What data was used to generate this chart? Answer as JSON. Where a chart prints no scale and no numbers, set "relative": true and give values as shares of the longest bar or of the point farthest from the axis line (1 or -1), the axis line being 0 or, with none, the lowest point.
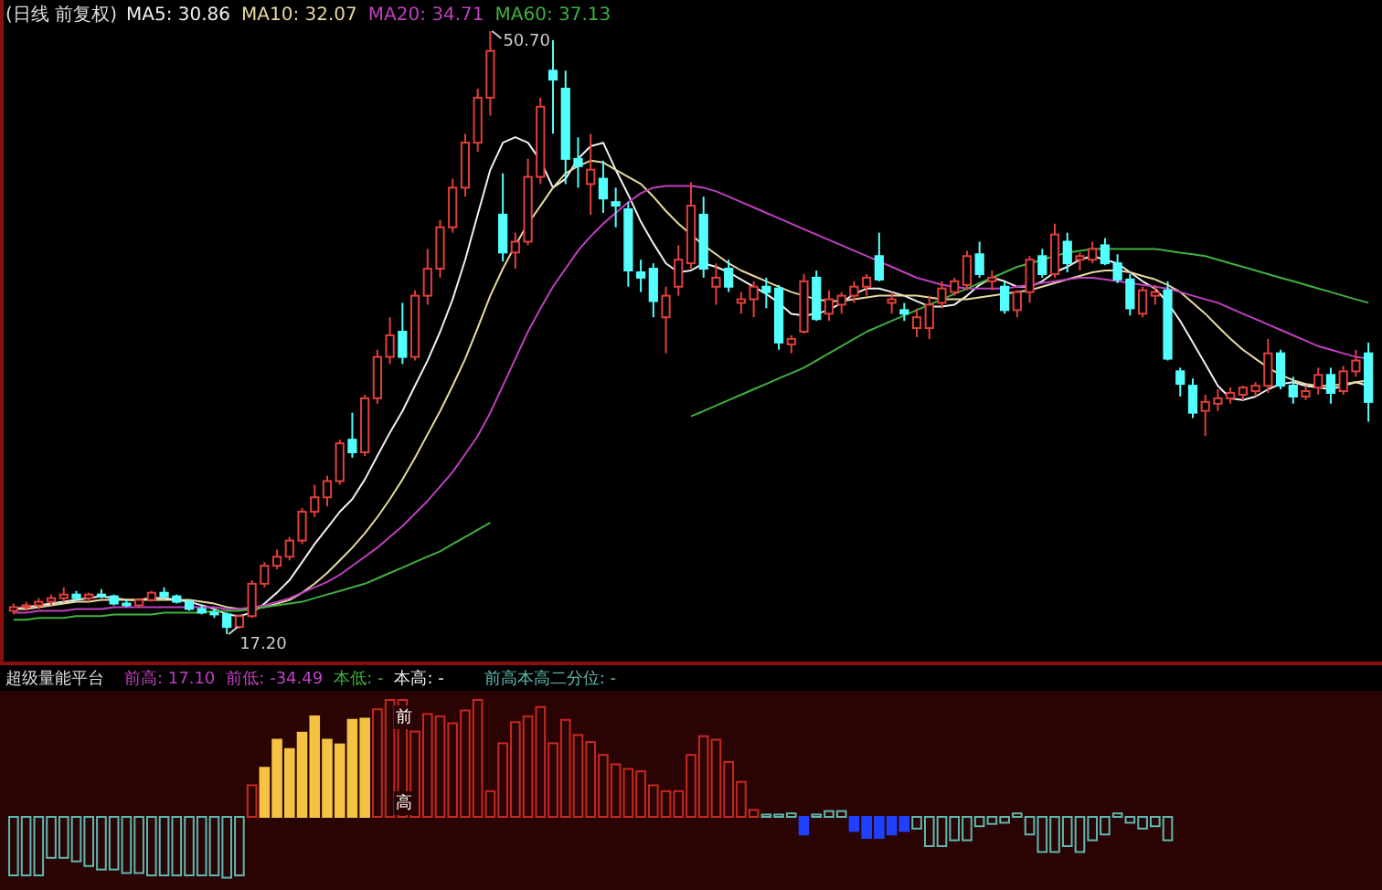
{
  "chart_data": [
    {
      "type": "candlestick",
      "title": "(日线 前复权)",
      "categories": [
        null,
        null,
        null,
        null,
        null,
        null,
        null,
        null,
        null,
        null,
        null,
        null,
        null,
        null,
        null,
        null,
        null,
        null,
        null,
        null,
        null,
        null,
        null,
        null,
        null,
        null,
        null,
        null,
        null,
        null,
        null,
        null,
        null,
        null,
        null,
        null,
        null,
        null,
        null,
        null,
        null,
        null,
        null,
        null,
        null,
        null,
        null,
        null,
        null,
        null,
        null,
        null,
        null,
        null,
        null,
        null,
        null,
        null,
        null,
        null,
        null,
        null,
        null,
        null,
        null,
        null,
        null,
        null,
        null,
        null,
        null,
        null,
        null,
        null,
        null,
        null,
        null,
        null,
        null,
        null,
        null,
        null,
        null,
        null,
        null,
        null,
        null,
        null,
        null,
        null,
        null,
        null,
        null,
        null,
        null,
        null,
        null,
        null,
        null,
        null,
        null,
        null,
        null,
        null,
        null,
        null,
        null,
        null,
        null
      ],
      "ohlc": [
        [
          18.5,
          18.9,
          18.3,
          18.7
        ],
        [
          18.7,
          19.0,
          18.5,
          18.8
        ],
        [
          18.8,
          19.2,
          18.6,
          19.0
        ],
        [
          19.0,
          19.4,
          18.8,
          19.2
        ],
        [
          19.2,
          19.8,
          19.0,
          19.4
        ],
        [
          19.4,
          19.6,
          19.1,
          19.2
        ],
        [
          19.2,
          19.5,
          19.0,
          19.4
        ],
        [
          19.4,
          19.7,
          19.2,
          19.3
        ],
        [
          19.3,
          19.4,
          18.8,
          18.9
        ],
        [
          18.9,
          19.1,
          18.7,
          18.8
        ],
        [
          18.8,
          19.2,
          18.7,
          19.1
        ],
        [
          19.1,
          19.6,
          19.0,
          19.5
        ],
        [
          19.5,
          19.8,
          19.2,
          19.3
        ],
        [
          19.3,
          19.4,
          18.9,
          19.0
        ],
        [
          19.0,
          19.1,
          18.5,
          18.6
        ],
        [
          18.6,
          18.8,
          18.3,
          18.4
        ],
        [
          18.4,
          18.6,
          18.1,
          18.3
        ],
        [
          18.3,
          18.4,
          17.2,
          17.6
        ],
        [
          17.6,
          18.3,
          17.5,
          18.2
        ],
        [
          18.2,
          20.2,
          18.1,
          20.0
        ],
        [
          20.0,
          21.2,
          19.8,
          21.0
        ],
        [
          21.0,
          21.9,
          20.8,
          21.5
        ],
        [
          21.5,
          22.6,
          21.3,
          22.4
        ],
        [
          22.4,
          24.2,
          22.2,
          24.0
        ],
        [
          24.0,
          25.5,
          23.7,
          24.8
        ],
        [
          24.8,
          26.0,
          24.3,
          25.7
        ],
        [
          25.7,
          28.0,
          25.5,
          27.8
        ],
        [
          28.0,
          29.5,
          27.0,
          27.3
        ],
        [
          27.3,
          30.5,
          27.1,
          30.3
        ],
        [
          30.3,
          33.0,
          30.0,
          32.6
        ],
        [
          32.6,
          34.8,
          32.2,
          33.8
        ],
        [
          34.0,
          35.6,
          32.2,
          32.6
        ],
        [
          32.6,
          36.3,
          32.4,
          36.0
        ],
        [
          36.0,
          38.6,
          35.5,
          37.5
        ],
        [
          37.5,
          40.2,
          37.0,
          39.8
        ],
        [
          39.8,
          42.5,
          39.5,
          42.0
        ],
        [
          42.0,
          45.0,
          41.5,
          44.5
        ],
        [
          44.5,
          47.5,
          44.0,
          47.0
        ],
        [
          47.0,
          50.7,
          46.0,
          49.6
        ],
        [
          40.5,
          42.8,
          37.9,
          38.4
        ],
        [
          38.4,
          39.5,
          37.5,
          39.0
        ],
        [
          39.0,
          43.6,
          38.8,
          42.6
        ],
        [
          42.6,
          47.0,
          42.2,
          46.5
        ],
        [
          48.5,
          50.2,
          45.0,
          48.0
        ],
        [
          47.5,
          48.5,
          42.2,
          43.6
        ],
        [
          43.6,
          44.8,
          42.0,
          43.2
        ],
        [
          42.2,
          45.0,
          40.5,
          43.0
        ],
        [
          42.5,
          43.5,
          40.6,
          41.4
        ],
        [
          41.2,
          42.0,
          39.8,
          41.0
        ],
        [
          40.8,
          41.2,
          36.5,
          37.4
        ],
        [
          37.3,
          38.0,
          36.2,
          37.0
        ],
        [
          37.5,
          37.8,
          34.8,
          35.7
        ],
        [
          34.8,
          36.5,
          32.8,
          36.0
        ],
        [
          36.5,
          38.8,
          36.0,
          38.0
        ],
        [
          37.8,
          42.3,
          37.5,
          41.0
        ],
        [
          40.5,
          41.5,
          37.0,
          37.5
        ],
        [
          36.5,
          37.8,
          35.5,
          37.0
        ],
        [
          37.5,
          38.0,
          36.2,
          36.5
        ],
        [
          35.6,
          36.2,
          35.0,
          35.8
        ],
        [
          35.8,
          36.8,
          34.8,
          36.5
        ],
        [
          36.5,
          37.0,
          35.3,
          36.2
        ],
        [
          36.4,
          36.6,
          33.0,
          33.4
        ],
        [
          33.3,
          33.8,
          32.8,
          33.6
        ],
        [
          34.0,
          37.2,
          33.9,
          36.8
        ],
        [
          37.0,
          37.4,
          34.6,
          34.7
        ],
        [
          35.0,
          36.3,
          34.6,
          35.8
        ],
        [
          35.5,
          36.2,
          35.0,
          36.0
        ],
        [
          36.0,
          36.8,
          35.6,
          36.5
        ],
        [
          36.5,
          37.2,
          36.0,
          37.0
        ],
        [
          38.2,
          39.5,
          36.8,
          36.9
        ],
        [
          35.6,
          36.2,
          35.0,
          35.8
        ],
        [
          35.2,
          35.6,
          34.6,
          35.0
        ],
        [
          34.2,
          35.3,
          33.7,
          34.8
        ],
        [
          34.2,
          36.0,
          33.6,
          35.5
        ],
        [
          35.6,
          36.8,
          35.3,
          36.4
        ],
        [
          36.2,
          37.0,
          36.0,
          36.8
        ],
        [
          36.6,
          38.5,
          36.3,
          38.2
        ],
        [
          38.3,
          39.0,
          37.0,
          37.2
        ],
        [
          36.8,
          37.4,
          36.3,
          37.0
        ],
        [
          36.5,
          36.8,
          35.0,
          35.2
        ],
        [
          35.2,
          36.3,
          34.8,
          36.2
        ],
        [
          36.2,
          38.2,
          35.6,
          38.0
        ],
        [
          38.2,
          38.6,
          37.0,
          37.2
        ],
        [
          37.2,
          40.0,
          37.0,
          39.4
        ],
        [
          39.0,
          39.5,
          37.3,
          37.8
        ],
        [
          38.0,
          38.4,
          37.4,
          38.2
        ],
        [
          38.0,
          39.0,
          37.8,
          38.6
        ],
        [
          38.8,
          39.2,
          37.7,
          37.8
        ],
        [
          37.8,
          38.3,
          36.7,
          36.9
        ],
        [
          36.9,
          37.2,
          34.9,
          35.3
        ],
        [
          35.0,
          36.5,
          34.8,
          36.3
        ],
        [
          36.0,
          36.6,
          35.5,
          36.2
        ],
        [
          36.3,
          36.8,
          32.4,
          32.5
        ],
        [
          31.8,
          32.0,
          30.4,
          31.1
        ],
        [
          31.0,
          31.4,
          29.2,
          29.5
        ],
        [
          29.6,
          30.5,
          28.2,
          30.1
        ],
        [
          30.0,
          30.8,
          29.6,
          30.3
        ],
        [
          30.3,
          30.9,
          30.0,
          30.6
        ],
        [
          30.5,
          31.0,
          30.2,
          30.9
        ],
        [
          30.7,
          31.2,
          30.4,
          31.0
        ],
        [
          31.0,
          33.6,
          30.6,
          32.8
        ],
        [
          32.8,
          33.0,
          30.8,
          31.0
        ],
        [
          31.0,
          31.5,
          30.0,
          30.4
        ],
        [
          30.4,
          31.0,
          30.2,
          30.7
        ],
        [
          30.9,
          32.0,
          30.5,
          31.6
        ],
        [
          31.6,
          32.0,
          30.0,
          30.6
        ],
        [
          30.7,
          32.1,
          30.5,
          31.8
        ],
        [
          31.8,
          33.0,
          31.5,
          32.4
        ],
        [
          32.8,
          33.4,
          29.0,
          30.1
        ]
      ],
      "series": [
        {
          "type": "line",
          "name": "MA5: 30.86",
          "color": "#f0f0f0",
          "values": [
            18.6,
            18.7,
            18.8,
            18.9,
            19.0,
            19.1,
            19.2,
            19.3,
            19.2,
            19.1,
            19.1,
            19.2,
            19.2,
            19.1,
            19.0,
            18.8,
            18.6,
            18.3,
            18.2,
            18.4,
            18.9,
            19.5,
            20.2,
            21.2,
            22.2,
            23.1,
            24.0,
            24.7,
            25.8,
            27.1,
            28.4,
            29.6,
            31.0,
            32.4,
            34.0,
            35.8,
            38.0,
            40.5,
            43.0,
            44.5,
            44.8,
            44.5,
            43.5,
            42.0,
            42.5,
            43.6,
            44.3,
            44.5,
            43.0,
            41.6,
            40.1,
            38.9,
            37.8,
            37.3,
            37.4,
            37.8,
            37.6,
            37.3,
            36.9,
            36.5,
            36.1,
            35.6,
            35.0,
            34.9,
            35.0,
            35.2,
            35.6,
            36.1,
            36.4,
            36.4,
            36.2,
            36.0,
            35.7,
            35.4,
            35.4,
            35.5,
            36.0,
            36.6,
            37.0,
            36.8,
            36.5,
            36.5,
            36.8,
            37.3,
            37.6,
            38.0,
            38.2,
            38.0,
            37.8,
            37.3,
            36.8,
            36.4,
            35.6,
            34.6,
            33.4,
            32.2,
            31.0,
            30.3,
            30.2,
            30.4,
            30.8,
            31.1,
            31.2,
            31.0,
            30.9,
            30.8,
            31.0,
            31.2,
            31.0
          ]
        },
        {
          "type": "line",
          "name": "MA10: 32.07",
          "color": "#e8d9a0",
          "values": [
            18.6,
            18.6,
            18.7,
            18.8,
            18.9,
            19.0,
            19.0,
            19.1,
            19.1,
            19.1,
            19.1,
            19.1,
            19.1,
            19.1,
            19.1,
            19.0,
            18.9,
            18.7,
            18.6,
            18.6,
            18.7,
            18.9,
            19.1,
            19.5,
            20.0,
            20.6,
            21.3,
            22.0,
            22.8,
            23.7,
            24.7,
            25.8,
            27.0,
            28.3,
            29.6,
            31.0,
            32.5,
            34.2,
            36.0,
            37.5,
            38.8,
            40.0,
            41.0,
            42.0,
            42.8,
            43.2,
            43.5,
            43.4,
            43.0,
            42.6,
            42.2,
            41.5,
            40.7,
            40.0,
            39.4,
            38.8,
            38.3,
            37.8,
            37.4,
            37.1,
            36.8,
            36.5,
            36.2,
            36.0,
            35.8,
            35.7,
            35.7,
            35.8,
            35.9,
            36.0,
            36.0,
            36.0,
            36.0,
            35.9,
            35.8,
            35.8,
            35.8,
            35.9,
            36.0,
            36.1,
            36.2,
            36.3,
            36.5,
            36.7,
            36.9,
            37.1,
            37.3,
            37.4,
            37.4,
            37.3,
            37.1,
            36.9,
            36.6,
            36.2,
            35.6,
            35.0,
            34.3,
            33.6,
            33.0,
            32.5,
            32.0,
            31.6,
            31.3,
            31.1,
            31.0,
            31.0,
            31.1,
            31.2,
            31.3
          ]
        },
        {
          "type": "line",
          "name": "MA20: 34.71",
          "color": "#c040c0",
          "values": [
            18.4,
            18.4,
            18.5,
            18.5,
            18.5,
            18.6,
            18.6,
            18.6,
            18.7,
            18.7,
            18.7,
            18.7,
            18.7,
            18.7,
            18.7,
            18.7,
            18.7,
            18.6,
            18.6,
            18.7,
            18.8,
            19.0,
            19.2,
            19.5,
            19.8,
            20.1,
            20.5,
            21.0,
            21.5,
            22.0,
            22.6,
            23.2,
            23.9,
            24.6,
            25.4,
            26.2,
            27.2,
            28.2,
            29.5,
            31.0,
            32.5,
            34.0,
            35.3,
            36.5,
            37.5,
            38.5,
            39.3,
            40.0,
            40.6,
            41.2,
            41.7,
            42.0,
            42.1,
            42.1,
            42.1,
            42.0,
            41.8,
            41.5,
            41.2,
            40.9,
            40.6,
            40.3,
            40.0,
            39.7,
            39.4,
            39.1,
            38.8,
            38.5,
            38.2,
            37.9,
            37.6,
            37.3,
            37.0,
            36.8,
            36.6,
            36.5,
            36.4,
            36.4,
            36.4,
            36.4,
            36.5,
            36.6,
            36.7,
            36.8,
            36.9,
            37.0,
            37.0,
            36.9,
            36.8,
            36.7,
            36.6,
            36.5,
            36.4,
            36.2,
            36.0,
            35.8,
            35.6,
            35.3,
            35.0,
            34.7,
            34.4,
            34.1,
            33.8,
            33.5,
            33.2,
            33.0,
            32.8,
            32.6,
            32.5
          ]
        },
        {
          "type": "line",
          "name": "MA60: 37.13",
          "color": "#40b040",
          "values": [
            18.0,
            18.0,
            18.1,
            18.1,
            18.1,
            18.2,
            18.2,
            18.2,
            18.3,
            18.3,
            18.3,
            18.3,
            18.4,
            18.4,
            18.4,
            18.4,
            18.5,
            18.5,
            18.5,
            18.6,
            18.7,
            18.8,
            18.9,
            19.0,
            19.2,
            19.4,
            19.6,
            19.8,
            20.0,
            20.3,
            20.6,
            20.9,
            21.2,
            21.5,
            21.8,
            22.2,
            22.6,
            23.0,
            23.4,
            null,
            null,
            null,
            null,
            null,
            null,
            null,
            null,
            null,
            null,
            null,
            null,
            null,
            null,
            null,
            29.3,
            29.6,
            29.9,
            30.2,
            30.5,
            30.8,
            31.1,
            31.4,
            31.7,
            32.0,
            32.4,
            32.8,
            33.2,
            33.6,
            34.0,
            34.3,
            34.6,
            34.9,
            35.2,
            35.5,
            35.8,
            36.1,
            36.4,
            36.7,
            37.0,
            37.3,
            37.6,
            37.8,
            38.0,
            38.2,
            38.4,
            38.5,
            38.6,
            38.6,
            38.6,
            38.6,
            38.6,
            38.6,
            38.5,
            38.4,
            38.3,
            38.2,
            38.0,
            37.8,
            37.6,
            37.4,
            37.2,
            37.0,
            36.8,
            36.6,
            36.4,
            36.2,
            36.0,
            35.8,
            35.6
          ]
        }
      ],
      "legend": "top left",
      "annotations": [
        "50.70",
        "17.20"
      ]
    },
    {
      "type": "bar",
      "title": "超级量能平台",
      "relative": true,
      "categories": [
        null,
        null,
        null,
        null,
        null,
        null,
        null,
        null,
        null,
        null,
        null,
        null,
        null,
        null,
        null,
        null,
        null,
        null,
        null,
        null,
        null,
        null,
        null,
        null,
        null,
        null,
        null,
        null,
        null,
        null,
        null,
        null,
        null,
        null,
        null,
        null,
        null,
        null,
        null,
        null,
        null,
        null,
        null,
        null,
        null,
        null,
        null,
        null,
        null,
        null,
        null,
        null,
        null,
        null,
        null,
        null,
        null,
        null,
        null,
        null,
        null,
        null,
        null,
        null,
        null,
        null,
        null,
        null,
        null,
        null,
        null,
        null,
        null,
        null,
        null,
        null,
        null,
        null,
        null,
        null,
        null,
        null,
        null,
        null,
        null,
        null,
        null,
        null,
        null,
        null,
        null,
        null,
        null,
        null,
        null,
        null,
        null,
        null,
        null,
        null,
        null,
        null,
        null,
        null,
        null,
        null,
        null,
        null,
        null
      ],
      "values": [
        -0.5,
        -0.5,
        -0.5,
        -0.35,
        -0.35,
        -0.38,
        -0.42,
        -0.45,
        -0.45,
        -0.48,
        -0.48,
        -0.5,
        -0.5,
        -0.5,
        -0.5,
        -0.5,
        -0.5,
        -0.52,
        -0.5,
        0.27,
        0.42,
        0.66,
        0.58,
        0.72,
        0.86,
        0.66,
        0.62,
        0.83,
        0.84,
        0.92,
        1,
        1,
        0.73,
        0.88,
        0.86,
        0.8,
        0.91,
        1,
        0.22,
        0.63,
        0.81,
        0.86,
        0.94,
        0.63,
        0.83,
        0.7,
        0.64,
        0.53,
        0.45,
        0.41,
        0.39,
        0.27,
        0.22,
        0.22,
        0.53,
        0.69,
        0.66,
        0.47,
        0.3,
        0.06,
        0.02,
        0.02,
        0.03,
        -0.15,
        0.02,
        0.05,
        0.05,
        -0.12,
        -0.18,
        -0.18,
        -0.15,
        -0.12,
        -0.1,
        -0.25,
        -0.25,
        -0.2,
        -0.2,
        -0.08,
        -0.06,
        -0.05,
        0.03,
        -0.15,
        -0.3,
        -0.3,
        -0.25,
        -0.3,
        -0.2,
        -0.15,
        0.03,
        -0.05,
        -0.1,
        -0.08,
        -0.2,
        null,
        null,
        null,
        null,
        null,
        null,
        null,
        null,
        null,
        null,
        null,
        null,
        null,
        null,
        null,
        null
      ],
      "colors": [
        "#5fb8b0",
        "#5fb8b0",
        "#5fb8b0",
        "#5fb8b0",
        "#5fb8b0",
        "#5fb8b0",
        "#5fb8b0",
        "#5fb8b0",
        "#5fb8b0",
        "#5fb8b0",
        "#5fb8b0",
        "#5fb8b0",
        "#5fb8b0",
        "#5fb8b0",
        "#5fb8b0",
        "#5fb8b0",
        "#5fb8b0",
        "#5fb8b0",
        "#5fb8b0",
        "#c8281e",
        "#f5c242",
        "#f5c242",
        "#f5c242",
        "#f5c242",
        "#f5c242",
        "#f5c242",
        "#f5c242",
        "#f5c242",
        "#f5c242",
        "#c8281e",
        "#c8281e",
        "#c8281e",
        "#c8281e",
        "#c8281e",
        "#c8281e",
        "#c8281e",
        "#c8281e",
        "#c8281e",
        "#c8281e",
        "#c8281e",
        "#c8281e",
        "#c8281e",
        "#c8281e",
        "#c8281e",
        "#c8281e",
        "#c8281e",
        "#c8281e",
        "#c8281e",
        "#c8281e",
        "#c8281e",
        "#c8281e",
        "#c8281e",
        "#c8281e",
        "#c8281e",
        "#c8281e",
        "#c8281e",
        "#c8281e",
        "#c8281e",
        "#c8281e",
        "#c8281e",
        "#5fb8b0",
        "#5fb8b0",
        "#5fb8b0",
        "#2040ff",
        "#5fb8b0",
        "#5fb8b0",
        "#5fb8b0",
        "#2040ff",
        "#2040ff",
        "#2040ff",
        "#2040ff",
        "#2040ff",
        "#5fb8b0",
        "#5fb8b0",
        "#5fb8b0",
        "#5fb8b0",
        "#5fb8b0",
        "#5fb8b0",
        "#5fb8b0",
        "#5fb8b0",
        "#5fb8b0",
        "#5fb8b0",
        "#5fb8b0",
        "#5fb8b0",
        "#5fb8b0",
        "#5fb8b0",
        "#5fb8b0",
        "#5fb8b0",
        "#5fb8b0",
        "#5fb8b0",
        "#5fb8b0",
        "#5fb8b0",
        "#5fb8b0",
        null,
        null,
        null,
        null,
        null,
        null,
        null,
        null,
        null,
        null,
        null,
        null,
        null,
        null,
        null,
        null
      ],
      "annotations": [
        "前高: 17.10",
        "前低: -34.49",
        "本低: -",
        "本高: -",
        "前高本高二分位: -",
        "前",
        "高"
      ]
    }
  ]
}
